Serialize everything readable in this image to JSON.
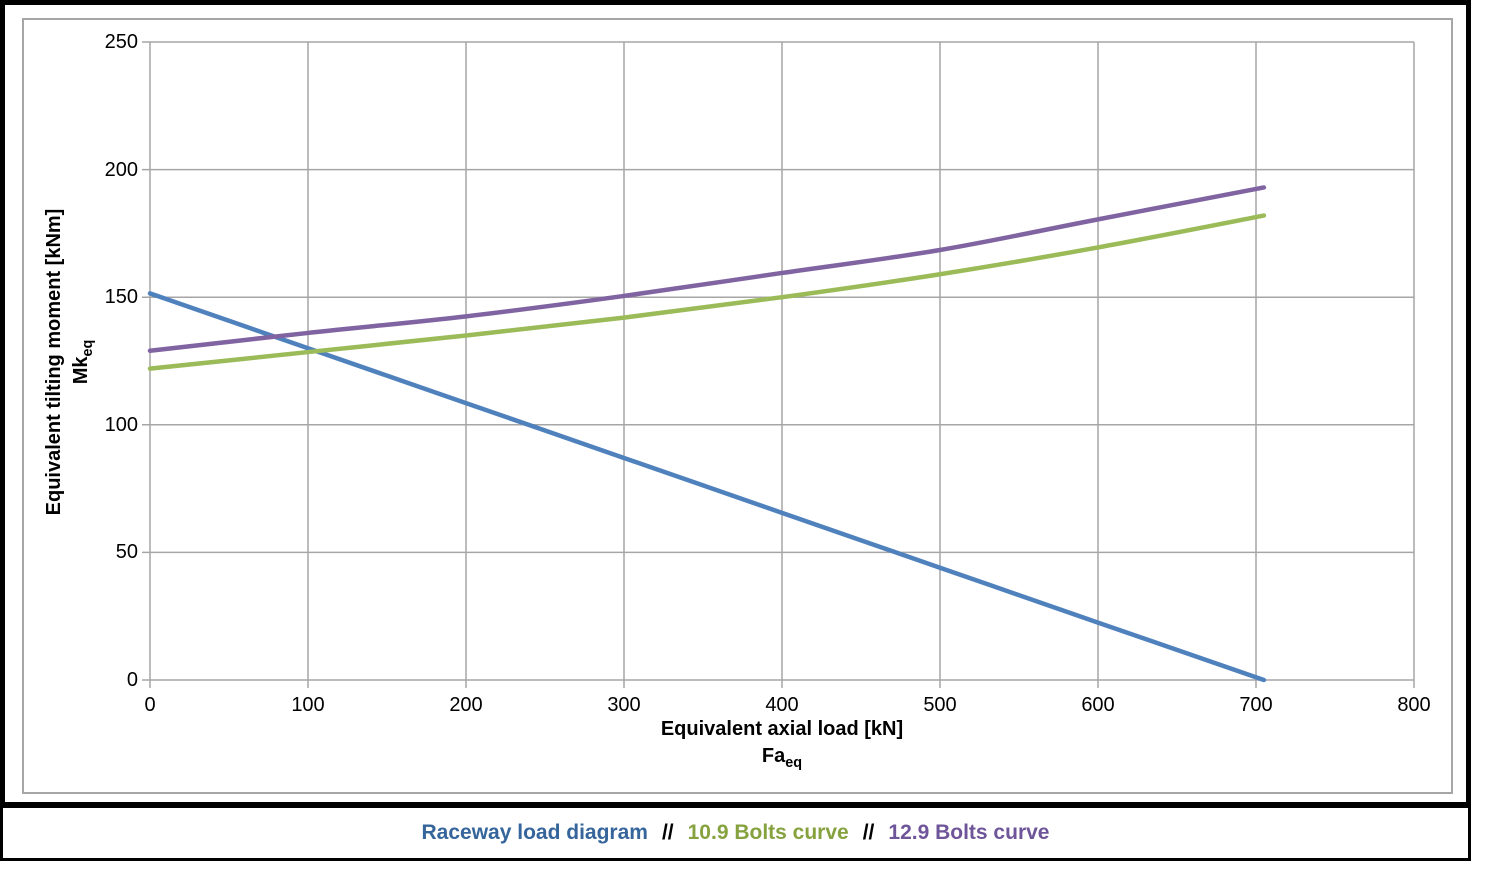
{
  "chart_data": {
    "type": "line",
    "title": "",
    "xlabel": "Equivalent axial load [kN]",
    "xlabel_symbol": "Fa",
    "xlabel_symbol_sub": "eq",
    "ylabel": "Equivalent tilting moment [kNm]",
    "ylabel_symbol": "Mk",
    "ylabel_symbol_sub": "eq",
    "xlim": [
      0,
      800
    ],
    "ylim": [
      0,
      250
    ],
    "xticks": [
      0,
      100,
      200,
      300,
      400,
      500,
      600,
      700,
      800
    ],
    "yticks": [
      0,
      50,
      100,
      150,
      200,
      250
    ],
    "grid": true,
    "legend_position": "bottom-box",
    "series": [
      {
        "name": "Raceway load diagram",
        "color": "#4F81BD",
        "x": [
          0,
          100,
          200,
          300,
          400,
          500,
          600,
          705
        ],
        "y": [
          151.5,
          130,
          108.5,
          87,
          65.5,
          44,
          22.5,
          0
        ]
      },
      {
        "name": "10.9 Bolts curve",
        "color": "#9BBB59",
        "x": [
          0,
          100,
          200,
          300,
          400,
          500,
          600,
          705
        ],
        "y": [
          122,
          128.5,
          135,
          142,
          150,
          159,
          169.5,
          182
        ]
      },
      {
        "name": "12.9 Bolts curve",
        "color": "#8064A2",
        "x": [
          0,
          100,
          200,
          300,
          400,
          500,
          600,
          705
        ],
        "y": [
          129,
          136,
          142.5,
          150.5,
          159.5,
          168.5,
          180.5,
          193
        ]
      }
    ],
    "colors": {
      "grid": "#A6A6A6",
      "frame": "#A6A6A6",
      "outer_border": "#000000",
      "text": "#000000"
    }
  },
  "legend": {
    "separator": "//",
    "item_text_colors": [
      "#35659B",
      "#85A23F",
      "#6E5499"
    ]
  }
}
